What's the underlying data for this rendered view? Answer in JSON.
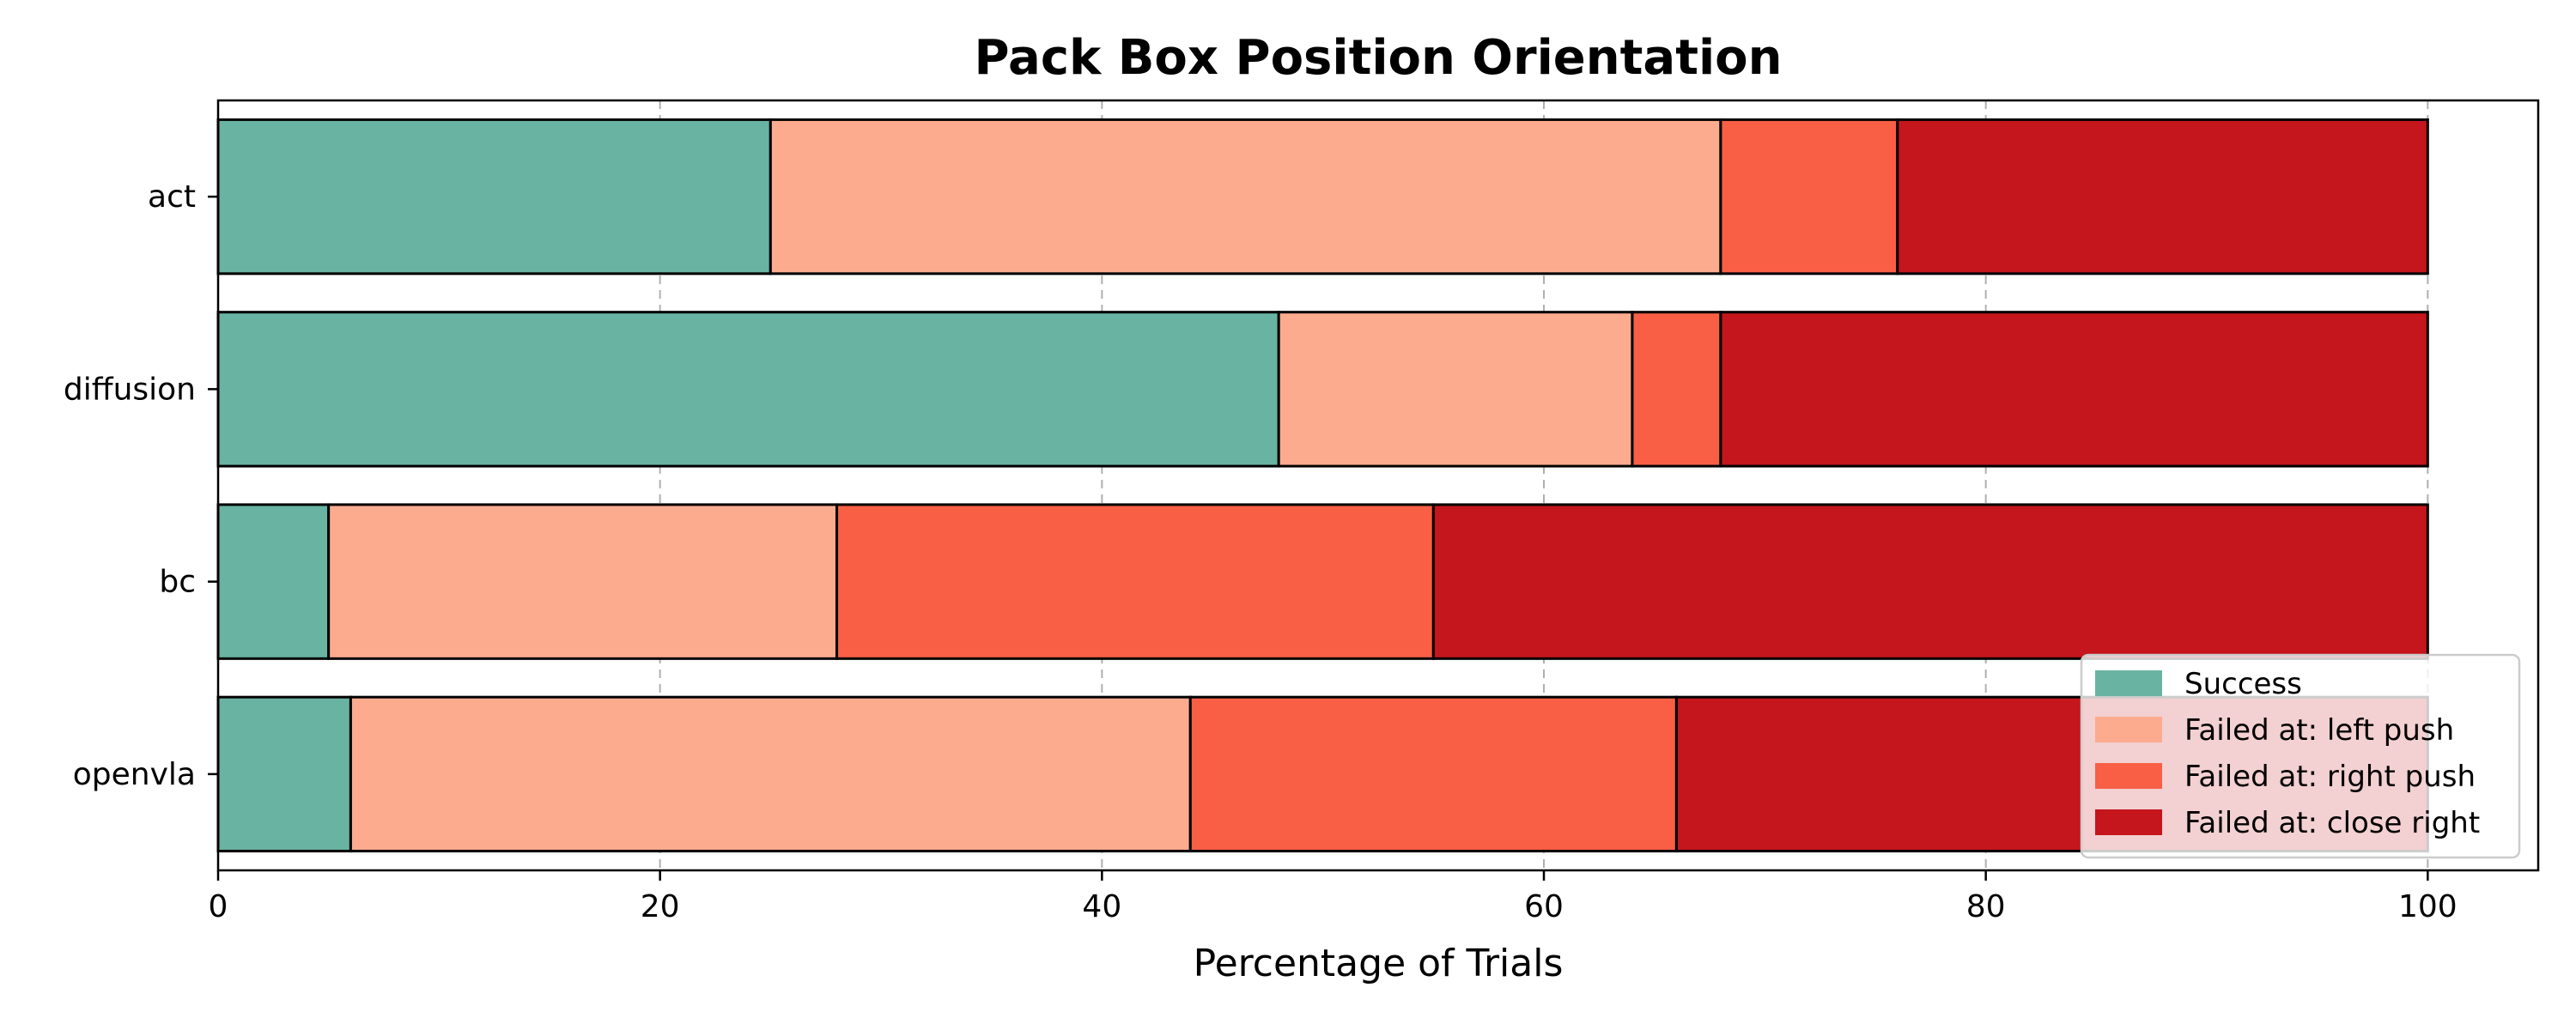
{
  "chart_data": {
    "type": "bar",
    "orientation": "horizontal",
    "stacked": true,
    "title": "Pack Box Position Orientation",
    "xlabel": "Percentage of Trials",
    "ylabel": "",
    "xlim": [
      0,
      105
    ],
    "xticks": [
      0,
      20,
      40,
      60,
      80,
      100
    ],
    "grid": "x-dashed",
    "legend_position": "lower-right",
    "categories": [
      "act",
      "diffusion",
      "bc",
      "openvla"
    ],
    "series": [
      {
        "name": "Success",
        "color": "#69b3a2",
        "values": [
          25,
          48,
          5,
          6
        ]
      },
      {
        "name": "Failed at: left push",
        "color": "#fcab8f",
        "values": [
          43,
          16,
          23,
          38
        ]
      },
      {
        "name": "Failed at: right push",
        "color": "#f85f45",
        "values": [
          8,
          4,
          27,
          22
        ]
      },
      {
        "name": "Failed at: close right",
        "color": "#c4161c",
        "values": [
          24,
          32,
          45,
          34
        ]
      }
    ]
  }
}
